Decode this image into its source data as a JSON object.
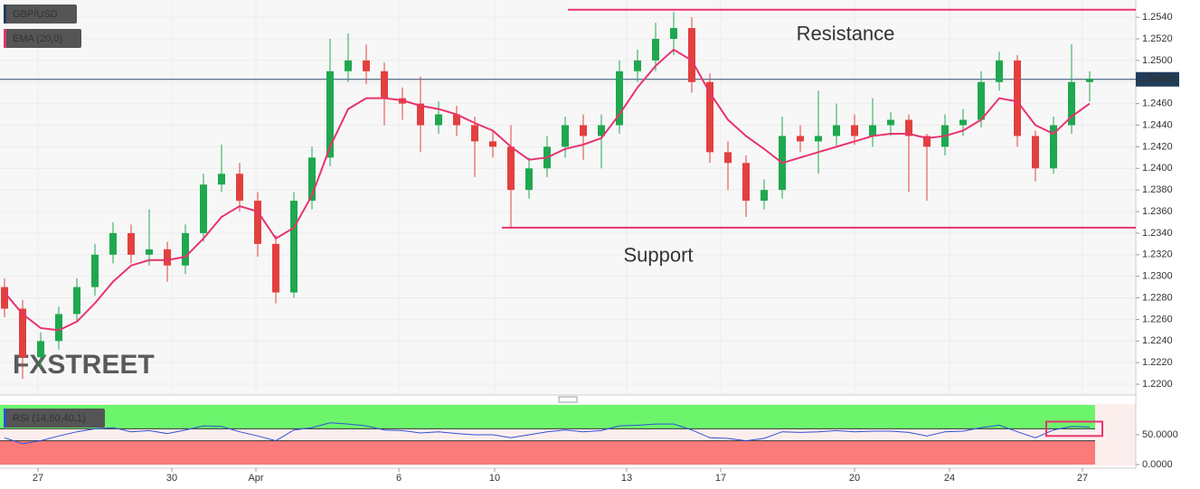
{
  "chart_data": [
    {
      "type": "candlestick",
      "title": "GBP/USD",
      "open": [
        1.229,
        1.227,
        1.2225,
        1.224,
        1.2265,
        1.229,
        1.232,
        1.234,
        1.232,
        1.2325,
        1.231,
        1.234,
        1.2385,
        1.2395,
        1.237,
        1.233,
        1.2285,
        1.237,
        1.241,
        1.249,
        1.25,
        1.249,
        1.2465,
        1.246,
        1.244,
        1.245,
        1.244,
        1.2425,
        1.242,
        1.238,
        1.24,
        1.242,
        1.244,
        1.243,
        1.244,
        1.249,
        1.25,
        1.252,
        1.253,
        1.248,
        1.2415,
        1.2405,
        1.237,
        1.238,
        1.243,
        1.2425,
        1.243,
        1.244,
        1.243,
        1.244,
        1.2445,
        1.243,
        1.242,
        1.244,
        1.2445,
        1.248,
        1.25,
        1.243,
        1.24,
        1.244,
        1.248
      ],
      "high": [
        1.2298,
        1.2278,
        1.2248,
        1.2272,
        1.2298,
        1.233,
        1.235,
        1.2348,
        1.2362,
        1.2332,
        1.2348,
        1.2395,
        1.2422,
        1.2405,
        1.2378,
        1.2338,
        1.2378,
        1.242,
        1.252,
        1.2525,
        1.2515,
        1.2498,
        1.2475,
        1.2485,
        1.2462,
        1.2458,
        1.2448,
        1.2435,
        1.244,
        1.241,
        1.243,
        1.2448,
        1.245,
        1.245,
        1.25,
        1.251,
        1.2535,
        1.2545,
        1.254,
        1.2488,
        1.2425,
        1.2412,
        1.239,
        1.2448,
        1.244,
        1.2472,
        1.246,
        1.245,
        1.2465,
        1.2452,
        1.245,
        1.2432,
        1.245,
        1.2455,
        1.249,
        1.2508,
        1.2505,
        1.2435,
        1.2448,
        1.2515,
        1.249
      ],
      "low": [
        1.2262,
        1.2205,
        1.2215,
        1.2232,
        1.2258,
        1.2282,
        1.2312,
        1.2312,
        1.231,
        1.2295,
        1.2302,
        1.2332,
        1.2378,
        1.236,
        1.2318,
        1.2275,
        1.228,
        1.2362,
        1.2402,
        1.248,
        1.2478,
        1.244,
        1.2445,
        1.2415,
        1.2432,
        1.243,
        1.2392,
        1.241,
        1.2345,
        1.2372,
        1.2392,
        1.241,
        1.2408,
        1.24,
        1.2432,
        1.248,
        1.249,
        1.2505,
        1.247,
        1.2405,
        1.238,
        1.2355,
        1.2362,
        1.2372,
        1.2415,
        1.2395,
        1.242,
        1.2422,
        1.242,
        1.243,
        1.2378,
        1.237,
        1.2412,
        1.243,
        1.2438,
        1.2472,
        1.242,
        1.2388,
        1.2395,
        1.2432,
        1.2462
      ],
      "close": [
        1.227,
        1.2225,
        1.224,
        1.2265,
        1.229,
        1.232,
        1.234,
        1.232,
        1.2325,
        1.231,
        1.234,
        1.2385,
        1.2395,
        1.237,
        1.233,
        1.2285,
        1.237,
        1.241,
        1.249,
        1.25,
        1.249,
        1.2465,
        1.246,
        1.244,
        1.245,
        1.244,
        1.2425,
        1.242,
        1.238,
        1.24,
        1.242,
        1.244,
        1.243,
        1.244,
        1.249,
        1.25,
        1.252,
        1.253,
        1.248,
        1.2415,
        1.2405,
        1.237,
        1.238,
        1.243,
        1.2425,
        1.243,
        1.244,
        1.243,
        1.244,
        1.2445,
        1.243,
        1.242,
        1.244,
        1.2445,
        1.248,
        1.25,
        1.243,
        1.24,
        1.244,
        1.248,
        1.2483
      ],
      "up_color": "#1fa84f",
      "down_color": "#e2403f",
      "series": [
        {
          "name": "EMA (20,0)",
          "color": "#e8336e",
          "values": [
            1.2285,
            1.2265,
            1.2252,
            1.225,
            1.2258,
            1.2275,
            1.2295,
            1.231,
            1.2315,
            1.2315,
            1.2318,
            1.2335,
            1.2355,
            1.2365,
            1.236,
            1.2335,
            1.2345,
            1.2375,
            1.242,
            1.2455,
            1.2465,
            1.2465,
            1.2463,
            1.2458,
            1.2455,
            1.245,
            1.2442,
            1.2435,
            1.242,
            1.2408,
            1.241,
            1.2418,
            1.2422,
            1.2428,
            1.245,
            1.2475,
            1.2495,
            1.251,
            1.25,
            1.247,
            1.2445,
            1.243,
            1.2418,
            1.2405,
            1.241,
            1.2415,
            1.242,
            1.2425,
            1.243,
            1.2432,
            1.2432,
            1.2428,
            1.243,
            1.2435,
            1.2445,
            1.2465,
            1.2462,
            1.244,
            1.2432,
            1.2448,
            1.246
          ]
        }
      ],
      "last_price": 1.24825,
      "levels": [
        {
          "label": "Resistance",
          "value": 1.2547,
          "start": 31.15,
          "color": "#e8336e"
        },
        {
          "label": "Support",
          "value": 1.2345,
          "start": 27.5,
          "color": "#e8336e"
        }
      ],
      "watermark": "FXSTREET",
      "xlim": [
        -0.25,
        62.55
      ],
      "ylim": [
        1.219,
        1.2556
      ],
      "yticks": [
        {
          "value": 1.22,
          "label": "1.2200"
        },
        {
          "value": 1.222,
          "label": "1.2220"
        },
        {
          "value": 1.224,
          "label": "1.2240"
        },
        {
          "value": 1.226,
          "label": "1.2260"
        },
        {
          "value": 1.228,
          "label": "1.2280"
        },
        {
          "value": 1.23,
          "label": "1.2300"
        },
        {
          "value": 1.232,
          "label": "1.2320"
        },
        {
          "value": 1.234,
          "label": "1.2340"
        },
        {
          "value": 1.236,
          "label": "1.2360"
        },
        {
          "value": 1.238,
          "label": "1.2380"
        },
        {
          "value": 1.24,
          "label": "1.2400"
        },
        {
          "value": 1.242,
          "label": "1.2420"
        },
        {
          "value": 1.244,
          "label": "1.2440"
        },
        {
          "value": 1.246,
          "label": "1.2460"
        },
        {
          "value": 1.248,
          "label": "1.2480"
        },
        {
          "value": 1.25,
          "label": "1.2500"
        },
        {
          "value": 1.252,
          "label": "1.2520"
        },
        {
          "value": 1.254,
          "label": "1.2540"
        }
      ],
      "xticks": [
        {
          "value": 1.85,
          "label": "27"
        },
        {
          "value": 9.25,
          "label": "30"
        },
        {
          "value": 13.9,
          "label": "Apr"
        },
        {
          "value": 21.8,
          "label": "6"
        },
        {
          "value": 27.1,
          "label": "10"
        },
        {
          "value": 34.4,
          "label": "13"
        },
        {
          "value": 39.6,
          "label": "17"
        },
        {
          "value": 47,
          "label": "20"
        },
        {
          "value": 52.25,
          "label": "24"
        },
        {
          "value": 59.6,
          "label": "27"
        }
      ],
      "grid": true
    },
    {
      "type": "line",
      "series": [
        {
          "name": "RSI (14,60,40,1)",
          "color": "#3050d8",
          "values": [
            45,
            35,
            40,
            48,
            55,
            60,
            62,
            55,
            57,
            52,
            58,
            65,
            64,
            55,
            48,
            40,
            58,
            62,
            70,
            68,
            65,
            58,
            57,
            53,
            55,
            52,
            50,
            50,
            45,
            50,
            55,
            58,
            55,
            57,
            65,
            66,
            68,
            68,
            58,
            45,
            44,
            40,
            44,
            55,
            54,
            55,
            57,
            55,
            56,
            56,
            54,
            48,
            55,
            56,
            62,
            66,
            55,
            45,
            58,
            64,
            63
          ]
        }
      ],
      "upper_level": 60,
      "lower_level": 40,
      "upper_zone_color": "#6cf56c",
      "lower_zone_color": "#fb7b7b",
      "ylim": [
        0,
        100
      ],
      "yticks": [
        {
          "value": 0,
          "label": "0.0000"
        },
        {
          "value": 50,
          "label": "50.0000"
        }
      ]
    }
  ]
}
